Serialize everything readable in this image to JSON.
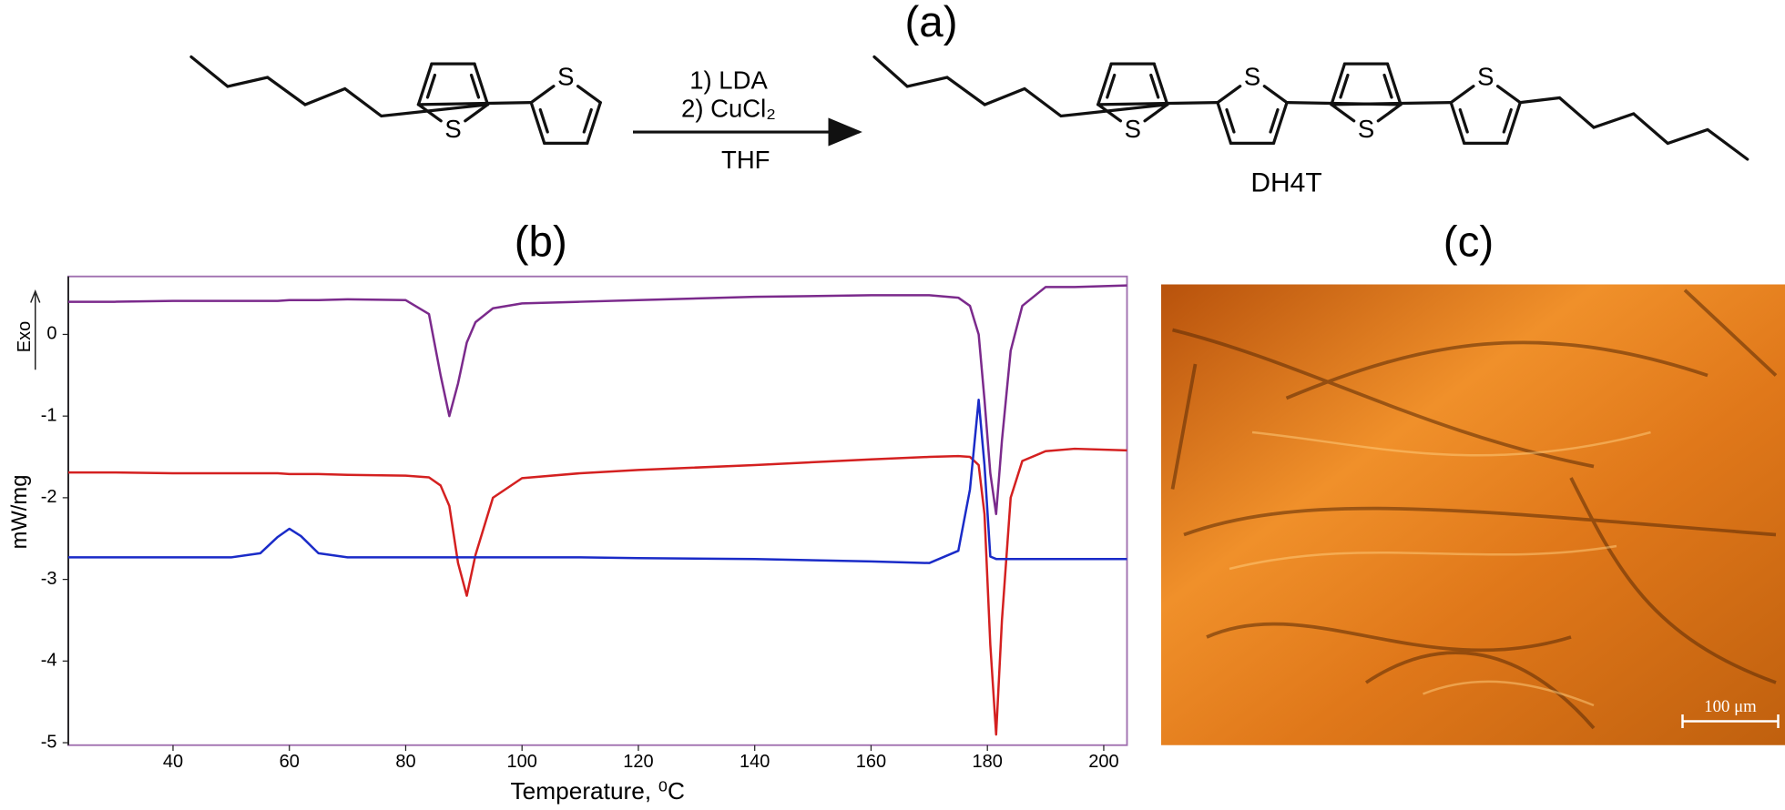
{
  "scheme": {
    "panel_label": "(a)",
    "atom_label": "S",
    "reagents": [
      "1) LDA",
      "2) CuCl₂"
    ],
    "solvent": "THF",
    "product_name": "DH4T"
  },
  "chart_data": {
    "type": "line",
    "title": "(b)",
    "x_label": "Temperature, ⁰C",
    "y_label": "mW/mg",
    "exo_label": "Exo",
    "x": [
      22,
      30,
      40,
      50,
      55,
      58,
      60,
      62,
      65,
      70,
      80,
      84,
      86,
      87.5,
      89,
      90.5,
      92,
      95,
      100,
      110,
      120,
      140,
      160,
      170,
      175,
      177,
      178.5,
      179.5,
      180.5,
      181.5,
      182.5,
      184,
      186,
      190,
      195,
      204
    ],
    "series": [
      {
        "color": "#7b2a8c",
        "values": [
          0.4,
          0.4,
          0.41,
          0.41,
          0.41,
          0.41,
          0.42,
          0.42,
          0.42,
          0.43,
          0.42,
          0.25,
          -0.5,
          -1.0,
          -0.6,
          -0.1,
          0.15,
          0.32,
          0.38,
          0.4,
          0.42,
          0.46,
          0.48,
          0.48,
          0.45,
          0.35,
          0.0,
          -0.8,
          -1.7,
          -2.2,
          -1.3,
          -0.2,
          0.35,
          0.58,
          0.58,
          0.6
        ]
      },
      {
        "color": "#d42020",
        "values": [
          -1.69,
          -1.69,
          -1.7,
          -1.7,
          -1.7,
          -1.7,
          -1.71,
          -1.71,
          -1.71,
          -1.72,
          -1.73,
          -1.75,
          -1.85,
          -2.1,
          -2.8,
          -3.2,
          -2.7,
          -2.0,
          -1.76,
          -1.7,
          -1.66,
          -1.6,
          -1.53,
          -1.5,
          -1.49,
          -1.5,
          -1.6,
          -2.2,
          -3.8,
          -4.9,
          -3.5,
          -2.0,
          -1.55,
          -1.43,
          -1.4,
          -1.42
        ]
      },
      {
        "color": "#1a2bc8",
        "values": [
          -2.73,
          -2.73,
          -2.73,
          -2.73,
          -2.68,
          -2.48,
          -2.38,
          -2.47,
          -2.68,
          -2.73,
          -2.73,
          -2.73,
          -2.73,
          -2.73,
          -2.73,
          -2.73,
          -2.73,
          -2.73,
          -2.73,
          -2.73,
          -2.74,
          -2.75,
          -2.78,
          -2.8,
          -2.65,
          -1.9,
          -0.8,
          -1.6,
          -2.72,
          -2.75,
          -2.75,
          -2.75,
          -2.75,
          -2.75,
          -2.75,
          -2.75
        ]
      }
    ],
    "xlim": [
      22,
      204
    ],
    "ylim": [
      -5.03,
      0.71
    ],
    "xticks": [
      40,
      60,
      80,
      100,
      120,
      140,
      160,
      180,
      200
    ],
    "yticks": [
      0,
      -1,
      -2,
      -3,
      -4,
      -5
    ]
  },
  "micrograph": {
    "panel_label": "(c)",
    "scale_bar": "100 μm"
  }
}
